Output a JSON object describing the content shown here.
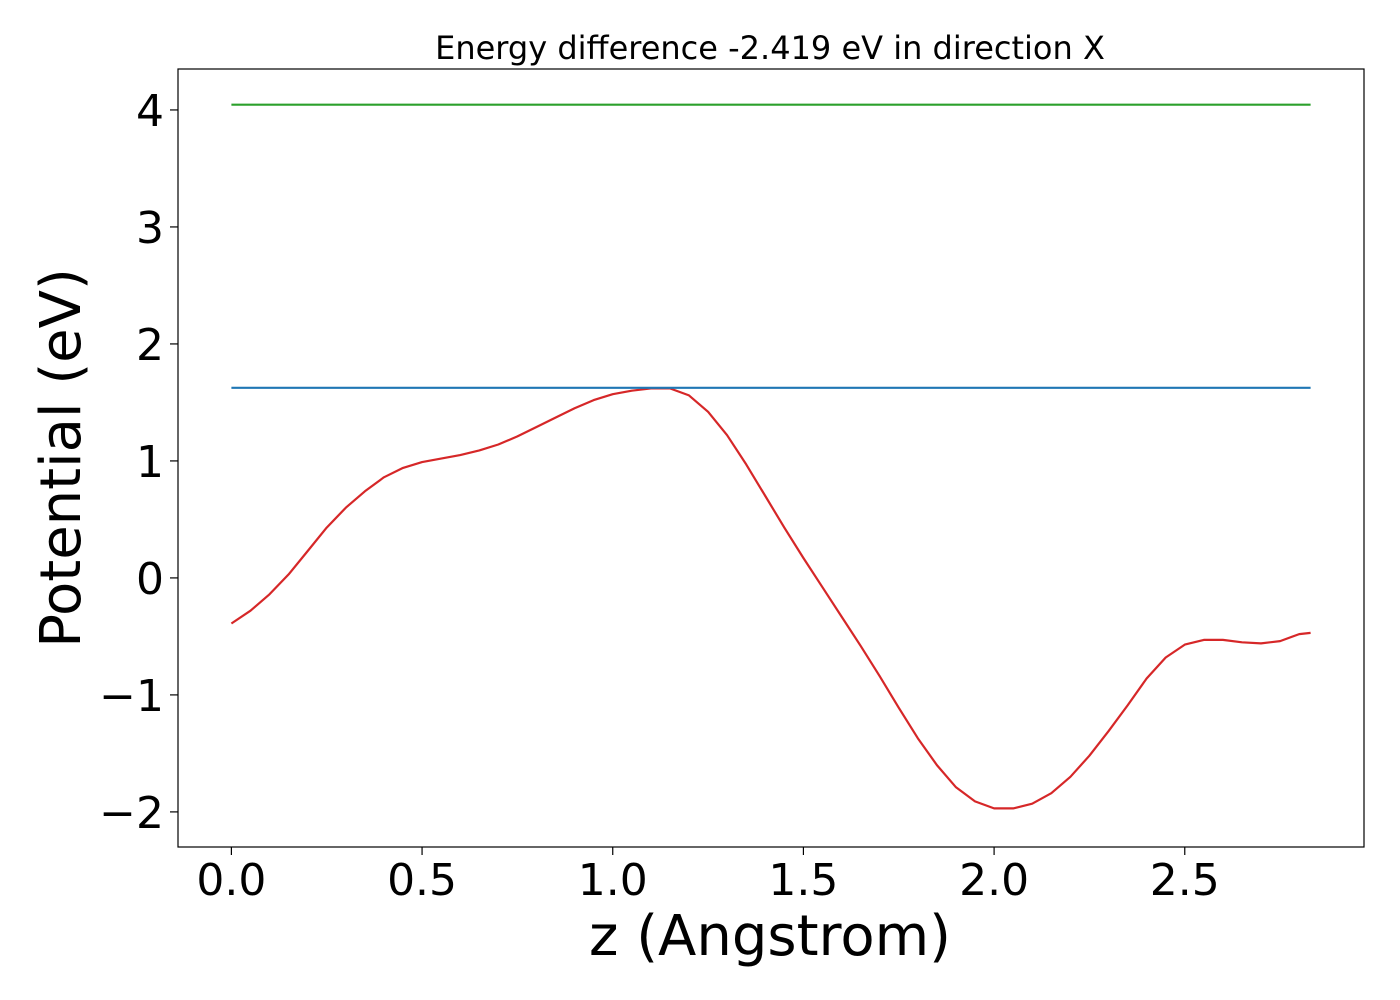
{
  "chart_data": {
    "type": "line",
    "title": "Energy difference -2.419 eV in direction X",
    "xlabel": "z (Angstrom)",
    "ylabel": "Potential (eV)",
    "xlim": [
      -0.14,
      2.97
    ],
    "ylim": [
      -2.3,
      4.35
    ],
    "xticks": [
      0.0,
      0.5,
      1.0,
      1.5,
      2.0,
      2.5
    ],
    "xtick_labels": [
      "0.0",
      "0.5",
      "1.0",
      "1.5",
      "2.0",
      "2.5"
    ],
    "yticks": [
      -2,
      -1,
      0,
      1,
      2,
      3,
      4
    ],
    "ytick_labels": [
      "−2",
      "−1",
      "0",
      "1",
      "2",
      "3",
      "4"
    ],
    "grid": false,
    "series": [
      {
        "color": "#d62728",
        "x": [
          0.0,
          0.05,
          0.1,
          0.15,
          0.2,
          0.25,
          0.3,
          0.35,
          0.4,
          0.45,
          0.5,
          0.55,
          0.6,
          0.65,
          0.7,
          0.75,
          0.8,
          0.85,
          0.9,
          0.95,
          1.0,
          1.05,
          1.1,
          1.15,
          1.2,
          1.25,
          1.3,
          1.35,
          1.4,
          1.45,
          1.5,
          1.55,
          1.6,
          1.65,
          1.7,
          1.75,
          1.8,
          1.85,
          1.9,
          1.95,
          2.0,
          2.05,
          2.1,
          2.15,
          2.2,
          2.25,
          2.3,
          2.35,
          2.4,
          2.45,
          2.5,
          2.55,
          2.6,
          2.65,
          2.7,
          2.75,
          2.8,
          2.83
        ],
        "y": [
          -0.39,
          -0.28,
          -0.14,
          0.03,
          0.23,
          0.43,
          0.6,
          0.74,
          0.86,
          0.94,
          0.99,
          1.02,
          1.05,
          1.09,
          1.14,
          1.21,
          1.29,
          1.37,
          1.45,
          1.52,
          1.57,
          1.6,
          1.62,
          1.62,
          1.56,
          1.42,
          1.22,
          0.97,
          0.7,
          0.43,
          0.17,
          -0.08,
          -0.33,
          -0.58,
          -0.84,
          -1.11,
          -1.37,
          -1.6,
          -1.79,
          -1.91,
          -1.97,
          -1.97,
          -1.93,
          -1.84,
          -1.7,
          -1.52,
          -1.31,
          -1.09,
          -0.86,
          -0.68,
          -0.57,
          -0.53,
          -0.53,
          -0.55,
          -0.56,
          -0.54,
          -0.48,
          -0.47
        ]
      },
      {
        "color": "#1f77b4",
        "x": [
          0.0,
          2.83
        ],
        "y": [
          1.625,
          1.625
        ]
      },
      {
        "color": "#2ca02c",
        "x": [
          0.0,
          2.83
        ],
        "y": [
          4.045,
          4.045
        ]
      }
    ]
  }
}
